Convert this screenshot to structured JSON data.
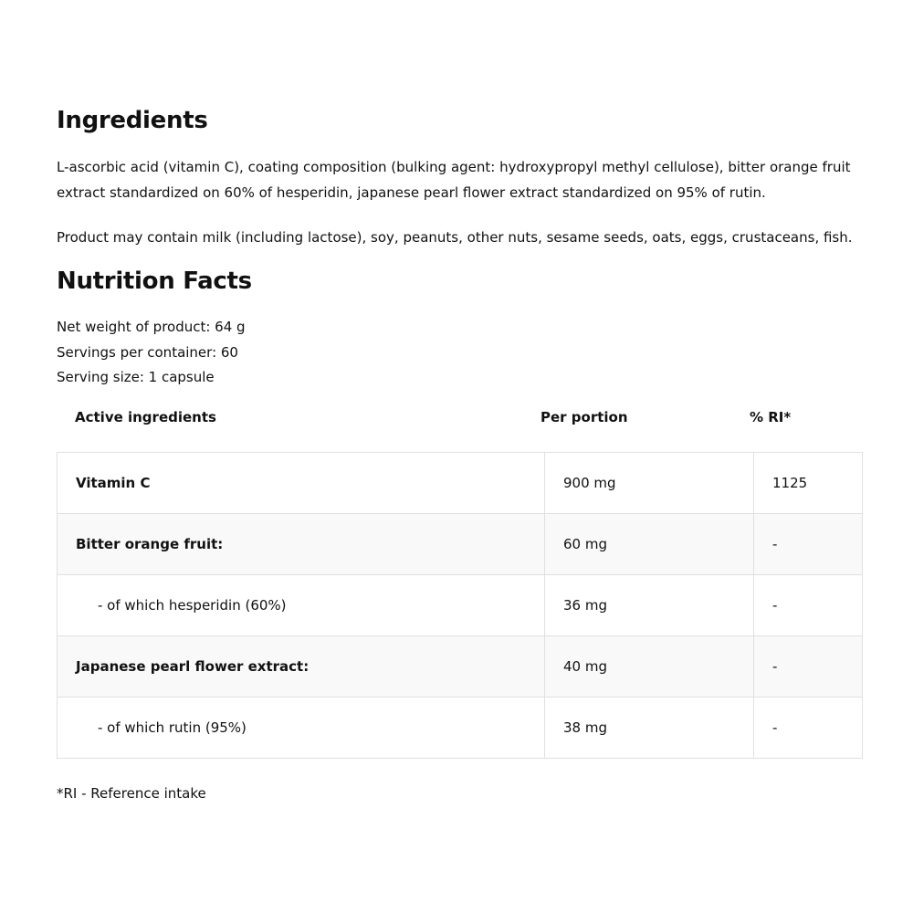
{
  "ingredients": {
    "title": "Ingredients",
    "text": "L-ascorbic acid (vitamin C), coating composition (bulking agent: hydroxypropyl methyl cellulose), bitter orange fruit extract standardized on 60% of hesperidin, japanese pearl flower extract standardized on 95% of rutin.",
    "allergens": "Product may contain milk (including lactose), soy, peanuts, other nuts, sesame seeds, oats, eggs, crustaceans, fish."
  },
  "nutrition": {
    "title": "Nutrition Facts",
    "net_weight": "Net weight of product: 64 g",
    "servings": "Servings per container: 60",
    "serving_size": "Serving size: 1 capsule",
    "headers": [
      "Active ingredients",
      "Per portion",
      "% RI*"
    ],
    "rows": [
      {
        "name": "Vitamin C",
        "portion": "900 mg",
        "ri": "1125"
      },
      {
        "name": "Bitter orange fruit:",
        "portion": "60 mg",
        "ri": "-"
      },
      {
        "name": "- of which hesperidin (60%)",
        "portion": "36 mg",
        "ri": "-"
      },
      {
        "name": "Japanese pearl flower extract:",
        "portion": "40 mg",
        "ri": "-"
      },
      {
        "name": "- of which rutin (95%)",
        "portion": "38 mg",
        "ri": "-"
      }
    ],
    "footnote": "*RI - Reference intake"
  }
}
